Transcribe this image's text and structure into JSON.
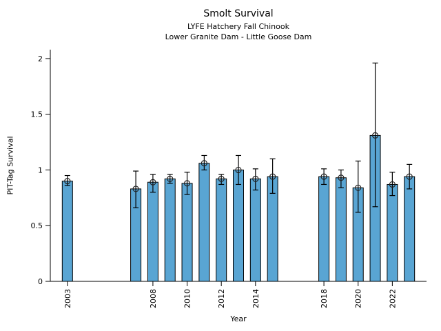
{
  "chart_data": {
    "type": "bar",
    "title": "Smolt Survival",
    "subtitle1": "LYFE Hatchery Fall Chinook",
    "subtitle2": "Lower Granite Dam - Little Goose Dam",
    "xlabel": "Year",
    "ylabel": "PIT-Tag Survival",
    "ylim": [
      0,
      2.08
    ],
    "yticks": [
      0,
      0.5,
      1,
      1.5,
      2
    ],
    "ytick_labels": [
      "0",
      "0.5",
      "1",
      "1.5",
      "2"
    ],
    "xticks": [
      2003,
      2008,
      2010,
      2012,
      2014,
      2018,
      2020,
      2022
    ],
    "xlim": [
      2002,
      2024
    ],
    "grid": false,
    "legend": "none",
    "bar_color": "#59A5D3",
    "bar_edge_color": "#000000",
    "error_bar_color": "#000000",
    "marker": "open-circle",
    "series": [
      {
        "name": "PIT-Tag Survival",
        "points": [
          {
            "year": 2003,
            "value": 0.9,
            "ci_low": 0.86,
            "ci_high": 0.95
          },
          {
            "year": 2007,
            "value": 0.83,
            "ci_low": 0.66,
            "ci_high": 0.99
          },
          {
            "year": 2008,
            "value": 0.89,
            "ci_low": 0.8,
            "ci_high": 0.96
          },
          {
            "year": 2009,
            "value": 0.92,
            "ci_low": 0.88,
            "ci_high": 0.96
          },
          {
            "year": 2010,
            "value": 0.88,
            "ci_low": 0.78,
            "ci_high": 0.98
          },
          {
            "year": 2011,
            "value": 1.06,
            "ci_low": 1.0,
            "ci_high": 1.13
          },
          {
            "year": 2012,
            "value": 0.92,
            "ci_low": 0.87,
            "ci_high": 0.96
          },
          {
            "year": 2013,
            "value": 1.0,
            "ci_low": 0.87,
            "ci_high": 1.13
          },
          {
            "year": 2014,
            "value": 0.92,
            "ci_low": 0.82,
            "ci_high": 1.01
          },
          {
            "year": 2015,
            "value": 0.94,
            "ci_low": 0.79,
            "ci_high": 1.1
          },
          {
            "year": 2018,
            "value": 0.94,
            "ci_low": 0.87,
            "ci_high": 1.01
          },
          {
            "year": 2019,
            "value": 0.93,
            "ci_low": 0.84,
            "ci_high": 1.0
          },
          {
            "year": 2020,
            "value": 0.84,
            "ci_low": 0.62,
            "ci_high": 1.08
          },
          {
            "year": 2021,
            "value": 1.31,
            "ci_low": 0.67,
            "ci_high": 1.96
          },
          {
            "year": 2022,
            "value": 0.87,
            "ci_low": 0.77,
            "ci_high": 0.98
          },
          {
            "year": 2023,
            "value": 0.94,
            "ci_low": 0.83,
            "ci_high": 1.05
          }
        ]
      }
    ]
  }
}
